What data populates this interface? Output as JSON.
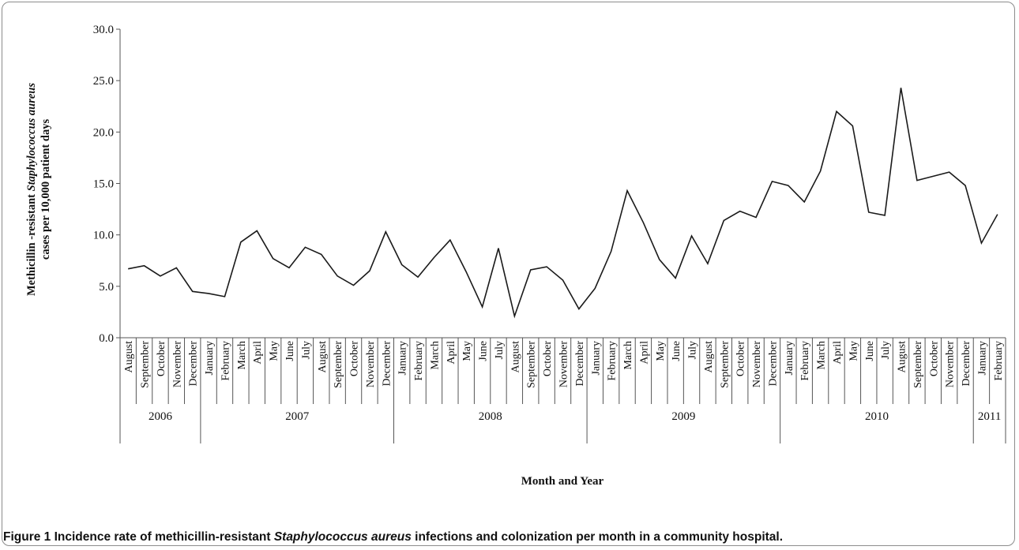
{
  "caption": {
    "prefix": "Figure 1 Incidence rate of methicillin-resistant ",
    "italic": "Staphylococcus aureus",
    "suffix": " infections and colonization per month in a community hospital."
  },
  "chart_data": {
    "type": "line",
    "xlabel": "Month and Year",
    "ylabel": {
      "line1_prefix": "Methicillin  -resistant  ",
      "line1_italic": "Staphylococcus aureus",
      "line2": "cases per 10,000 patient days"
    },
    "ylim": [
      0,
      30
    ],
    "yticks": [
      "0.0",
      "5.0",
      "10.0",
      "15.0",
      "20.0",
      "25.0",
      "30.0"
    ],
    "grid": false,
    "legend": "none",
    "line_color": "#1a1a1a",
    "months": [
      "August",
      "September",
      "October",
      "November",
      "December",
      "January",
      "February",
      "March",
      "April",
      "May",
      "June",
      "July",
      "August",
      "September",
      "October",
      "November",
      "December",
      "January",
      "February",
      "March",
      "April",
      "May",
      "June",
      "July",
      "August",
      "September",
      "October",
      "November",
      "December",
      "January",
      "February",
      "March",
      "April",
      "May",
      "June",
      "July",
      "August",
      "September",
      "October",
      "November",
      "December",
      "January",
      "February",
      "March",
      "April",
      "May",
      "June",
      "July",
      "August",
      "September",
      "October",
      "November",
      "December",
      "January",
      "February"
    ],
    "years": [
      {
        "label": "2006",
        "count": 5
      },
      {
        "label": "2007",
        "count": 12
      },
      {
        "label": "2008",
        "count": 12
      },
      {
        "label": "2009",
        "count": 12
      },
      {
        "label": "2010",
        "count": 12
      },
      {
        "label": "2011",
        "count": 2
      }
    ],
    "values": [
      6.7,
      7.0,
      6.0,
      6.8,
      4.5,
      4.3,
      4.0,
      9.3,
      10.4,
      7.7,
      6.8,
      8.8,
      8.1,
      6.0,
      5.1,
      6.5,
      10.3,
      7.1,
      5.9,
      7.8,
      9.5,
      6.4,
      3.0,
      8.7,
      2.1,
      6.6,
      6.9,
      5.6,
      2.8,
      4.8,
      8.4,
      14.3,
      11.2,
      7.6,
      5.8,
      9.9,
      7.2,
      11.4,
      12.3,
      11.7,
      15.2,
      14.8,
      13.2,
      16.2,
      22.0,
      20.6,
      12.2,
      11.9,
      24.3,
      15.3,
      15.7,
      16.1,
      14.8,
      9.2,
      12.0
    ]
  }
}
